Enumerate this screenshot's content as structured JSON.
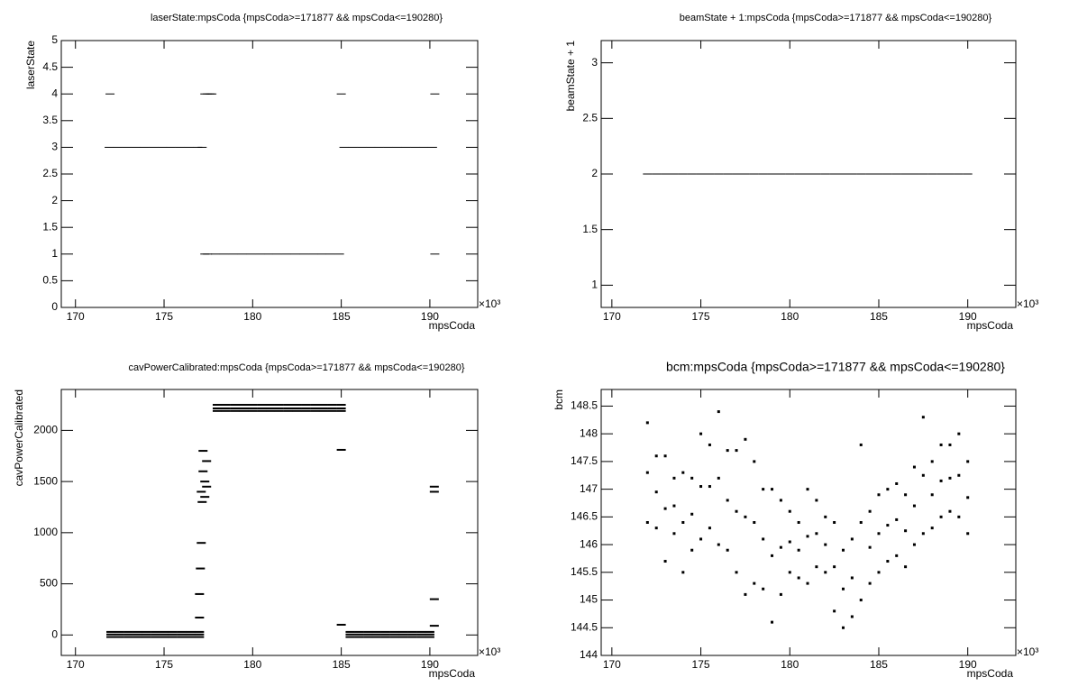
{
  "chart_data": [
    {
      "type": "scatter",
      "title": "laserState:mpsCoda {mpsCoda>=171877 && mpsCoda<=190280}",
      "x_label": "mpsCoda",
      "y_label": "laserState",
      "x_multiplier": "×10³",
      "xlim": [
        169200,
        192700
      ],
      "ylim": [
        0,
        5
      ],
      "xticks": [
        {
          "value": 170000,
          "label": "170"
        },
        {
          "value": 175000,
          "label": "175"
        },
        {
          "value": 180000,
          "label": "180"
        },
        {
          "value": 185000,
          "label": "185"
        },
        {
          "value": 190000,
          "label": "190"
        }
      ],
      "yticks": [
        0,
        0.5,
        1,
        1.5,
        2,
        2.5,
        3,
        3.5,
        4,
        4.5,
        5
      ],
      "color": "#000000",
      "x": [
        171900,
        172400,
        172900,
        173400,
        173900,
        174400,
        174900,
        175400,
        175900,
        176400,
        176900,
        177150,
        177900,
        178400,
        178900,
        179400,
        179900,
        180400,
        180900,
        181400,
        181900,
        182400,
        182900,
        183400,
        183900,
        184400,
        184900,
        185150,
        185650,
        186150,
        186650,
        187150,
        187650,
        188150,
        188650,
        189150,
        189650,
        190150,
        171950,
        177300,
        177450,
        177600,
        177700,
        185000,
        190280,
        177300,
        177450,
        190280
      ],
      "values": [
        3,
        3,
        3,
        3,
        3,
        3,
        3,
        3,
        3,
        3,
        3,
        3,
        1,
        1,
        1,
        1,
        1,
        1,
        1,
        1,
        1,
        1,
        1,
        1,
        1,
        1,
        1,
        3,
        3,
        3,
        3,
        3,
        3,
        3,
        3,
        3,
        3,
        3,
        4,
        4,
        4,
        4,
        4,
        4,
        4,
        1,
        1,
        1
      ]
    },
    {
      "type": "scatter",
      "title": "beamState + 1:mpsCoda {mpsCoda>=171877 && mpsCoda<=190280}",
      "x_label": "mpsCoda",
      "y_label": "beamState + 1",
      "x_multiplier": "×10³",
      "xlim": [
        169400,
        192700
      ],
      "ylim": [
        0.8,
        3.2
      ],
      "xticks": [
        {
          "value": 170000,
          "label": "170"
        },
        {
          "value": 175000,
          "label": "175"
        },
        {
          "value": 180000,
          "label": "180"
        },
        {
          "value": 185000,
          "label": "185"
        },
        {
          "value": 190000,
          "label": "190"
        }
      ],
      "yticks": [
        1,
        1.5,
        2,
        2.5,
        3
      ],
      "color": "#000000",
      "x": [
        172000,
        172500,
        173000,
        173500,
        174000,
        174500,
        175000,
        175500,
        176000,
        176500,
        177000,
        177500,
        178000,
        178500,
        179000,
        179500,
        180000,
        180500,
        181000,
        181500,
        182000,
        182500,
        183000,
        183500,
        184000,
        184500,
        185000,
        185500,
        186000,
        186500,
        187000,
        187500,
        188000,
        188500,
        189000,
        189500,
        190000
      ],
      "values": [
        2,
        2,
        2,
        2,
        2,
        2,
        2,
        2,
        2,
        2,
        2,
        2,
        2,
        2,
        2,
        2,
        2,
        2,
        2,
        2,
        2,
        2,
        2,
        2,
        2,
        2,
        2,
        2,
        2,
        2,
        2,
        2,
        2,
        2,
        2,
        2,
        2
      ]
    },
    {
      "type": "scatter",
      "title": "cavPowerCalibrated:mpsCoda {mpsCoda>=171877 && mpsCoda<=190280}",
      "x_label": "mpsCoda",
      "y_label": "cavPowerCalibrated",
      "x_multiplier": "×10³",
      "xlim": [
        169200,
        192700
      ],
      "ylim": [
        -200,
        2400
      ],
      "xticks": [
        {
          "value": 170000,
          "label": "170"
        },
        {
          "value": 175000,
          "label": "175"
        },
        {
          "value": 180000,
          "label": "180"
        },
        {
          "value": 185000,
          "label": "185"
        },
        {
          "value": 190000,
          "label": "190"
        }
      ],
      "yticks": [
        0,
        500,
        1000,
        1500,
        2000
      ],
      "color": "#000000",
      "x": [
        172000,
        172000,
        172000,
        172500,
        172500,
        172500,
        173000,
        173000,
        173000,
        173500,
        173500,
        173500,
        174000,
        174000,
        174000,
        174500,
        174500,
        174500,
        175000,
        175000,
        175000,
        175500,
        175500,
        175500,
        176000,
        176000,
        176000,
        176500,
        176500,
        176500,
        177000,
        177000,
        177000,
        185500,
        185500,
        185500,
        186000,
        186000,
        186000,
        186500,
        186500,
        186500,
        187000,
        187000,
        187000,
        187500,
        187500,
        187500,
        188000,
        188000,
        188000,
        188500,
        188500,
        188500,
        189000,
        189000,
        189000,
        189500,
        189500,
        189500,
        190000,
        190000,
        190000,
        178000,
        178000,
        178000,
        178500,
        178500,
        178500,
        179000,
        179000,
        179000,
        179500,
        179500,
        179500,
        180000,
        180000,
        180000,
        180500,
        180500,
        180500,
        181000,
        181000,
        181000,
        181500,
        181500,
        181500,
        182000,
        182000,
        182000,
        182500,
        182500,
        182500,
        183000,
        183000,
        183000,
        183500,
        183500,
        183500,
        184000,
        184000,
        184000,
        184500,
        184500,
        184500,
        185000,
        185000,
        185000,
        177000,
        177000,
        177050,
        177100,
        177150,
        177100,
        177300,
        177200,
        177400,
        177200,
        177300,
        177400,
        185000,
        185000,
        190250,
        190250,
        190250,
        190250
      ],
      "values": [
        30,
        5,
        -20,
        30,
        5,
        -20,
        30,
        5,
        -20,
        30,
        5,
        -20,
        30,
        5,
        -20,
        30,
        5,
        -20,
        30,
        5,
        -20,
        30,
        5,
        -20,
        30,
        5,
        -20,
        30,
        5,
        -20,
        30,
        5,
        -20,
        30,
        5,
        -20,
        30,
        5,
        -20,
        30,
        5,
        -20,
        30,
        5,
        -20,
        30,
        5,
        -20,
        30,
        5,
        -20,
        30,
        5,
        -20,
        30,
        5,
        -20,
        30,
        5,
        -20,
        30,
        5,
        -20,
        2250,
        2215,
        2190,
        2250,
        2215,
        2190,
        2250,
        2215,
        2190,
        2250,
        2215,
        2190,
        2250,
        2215,
        2190,
        2250,
        2215,
        2190,
        2250,
        2215,
        2190,
        2250,
        2215,
        2190,
        2250,
        2215,
        2190,
        2250,
        2215,
        2190,
        2250,
        2215,
        2190,
        2250,
        2215,
        2190,
        2250,
        2215,
        2190,
        2250,
        2215,
        2190,
        2250,
        2215,
        2190,
        170,
        400,
        650,
        900,
        1300,
        1400,
        1500,
        1600,
        1700,
        1800,
        1350,
        1450,
        1810,
        100,
        1400,
        1450,
        350,
        90
      ]
    },
    {
      "type": "scatter",
      "title": "bcm:mpsCoda {mpsCoda>=171877 && mpsCoda<=190280}",
      "x_label": "mpsCoda",
      "y_label": "bcm",
      "x_multiplier": "×10³",
      "xlim": [
        169400,
        192700
      ],
      "ylim": [
        144,
        148.8
      ],
      "xticks": [
        {
          "value": 170000,
          "label": "170"
        },
        {
          "value": 175000,
          "label": "175"
        },
        {
          "value": 180000,
          "label": "180"
        },
        {
          "value": 185000,
          "label": "185"
        },
        {
          "value": 190000,
          "label": "190"
        }
      ],
      "yticks": [
        144,
        144.5,
        145,
        145.5,
        146,
        146.5,
        147,
        147.5,
        148,
        148.5
      ],
      "color": "#000000",
      "x": [
        172000,
        172000,
        172000,
        172500,
        172500,
        172500,
        173000,
        173000,
        173000,
        173500,
        173500,
        173500,
        174000,
        174000,
        174000,
        174500,
        174500,
        174500,
        175000,
        175000,
        175000,
        175500,
        175500,
        175500,
        176000,
        176000,
        176000,
        176500,
        176500,
        176500,
        177000,
        177000,
        177000,
        177500,
        177500,
        177500,
        178000,
        178000,
        178000,
        178500,
        178500,
        178500,
        179000,
        179000,
        179000,
        179500,
        179500,
        179500,
        180000,
        180000,
        180000,
        180500,
        180500,
        180500,
        181000,
        181000,
        181000,
        181500,
        181500,
        181500,
        182000,
        182000,
        182000,
        182500,
        182500,
        182500,
        183000,
        183000,
        183000,
        183500,
        183500,
        183500,
        184000,
        184000,
        184000,
        184500,
        184500,
        184500,
        185000,
        185000,
        185000,
        185500,
        185500,
        185500,
        186000,
        186000,
        186000,
        186500,
        186500,
        186500,
        187000,
        187000,
        187000,
        187500,
        187500,
        187500,
        188000,
        188000,
        188000,
        188500,
        188500,
        188500,
        189000,
        189000,
        189000,
        189500,
        189500,
        189500,
        190000,
        190000,
        190000
      ],
      "values": [
        146.4,
        147.3,
        148.2,
        146.3,
        146.95,
        147.6,
        145.7,
        146.65,
        147.6,
        146.2,
        146.7,
        147.2,
        145.5,
        146.4,
        147.3,
        145.9,
        146.55,
        147.2,
        146.1,
        147.05,
        148.0,
        146.3,
        147.05,
        147.8,
        146.0,
        147.2,
        148.4,
        145.9,
        146.8,
        147.7,
        145.5,
        146.6,
        147.7,
        145.1,
        146.5,
        147.9,
        145.3,
        146.4,
        147.5,
        145.2,
        146.1,
        147.0,
        144.6,
        145.8,
        147.0,
        145.1,
        145.95,
        146.8,
        145.5,
        146.05,
        146.6,
        145.4,
        145.9,
        146.4,
        145.3,
        146.15,
        147.0,
        145.6,
        146.2,
        146.8,
        145.5,
        146.0,
        146.5,
        144.8,
        145.6,
        146.4,
        144.5,
        145.2,
        145.9,
        144.7,
        145.4,
        146.1,
        145.0,
        146.4,
        147.8,
        145.3,
        145.95,
        146.6,
        145.5,
        146.2,
        146.9,
        145.7,
        146.35,
        147.0,
        145.8,
        146.45,
        147.1,
        145.6,
        146.25,
        146.9,
        146.0,
        146.7,
        147.4,
        146.2,
        147.25,
        148.3,
        146.3,
        146.9,
        147.5,
        146.5,
        147.15,
        147.8,
        146.6,
        147.2,
        147.8,
        146.5,
        147.25,
        148.0,
        146.2,
        146.85,
        147.5
      ]
    }
  ]
}
